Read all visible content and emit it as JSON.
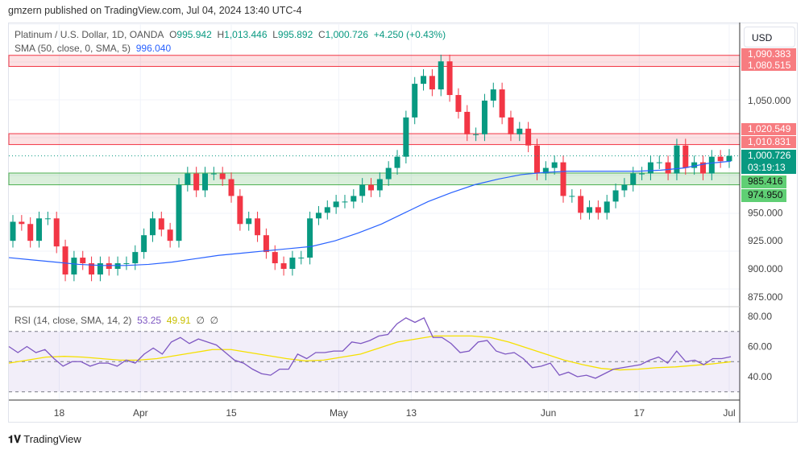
{
  "publisher": "gmzern published on TradingView.com, Jul 04, 2024 13:40 UTC-4",
  "legend": {
    "symbol": "Platinum / U.S. Dollar, 1D, OANDA",
    "o_label": "O",
    "o": "995.942",
    "h_label": "H",
    "h": "1,013.446",
    "l_label": "L",
    "l": "995.892",
    "c_label": "C",
    "c": "1,000.726",
    "change": "+4.250 (+0.43%)",
    "sma_label": "SMA (50, close, 0, SMA, 5)",
    "sma_value": "996.040",
    "rsi_label": "RSI (14, close, SMA, 14, 2)",
    "rsi_value": "53.25",
    "rsi_sma": "49.91",
    "rsi_extra1": "∅",
    "rsi_extra2": "∅"
  },
  "currency": "USD",
  "tags": {
    "z1top": "1,090.383",
    "z1bot": "1,080.515",
    "z2top": "1,020.549",
    "z2bot": "1,010.831",
    "last": "1,000.726",
    "countdown": "03:19:13",
    "z3top": "985.416",
    "z3bot": "974.950"
  },
  "brand": "TradingView",
  "colors": {
    "up": "#089981",
    "down": "#f23645",
    "sma": "#2962ff",
    "rsi": "#7e57c2",
    "rsi_sma": "#f5e000"
  },
  "chart_data": [
    {
      "type": "candlestick",
      "title": "Platinum / U.S. Dollar, 1D, OANDA",
      "ylim": [
        860,
        1110
      ],
      "yticks": [
        {
          "v": 1050,
          "label": "1,050.000"
        },
        {
          "v": 950,
          "label": "950.000"
        },
        {
          "v": 925,
          "label": "925.000"
        },
        {
          "v": 900,
          "label": "900.000"
        },
        {
          "v": 875,
          "label": "875.000"
        }
      ],
      "open0": 925,
      "closes": [
        942,
        940,
        925,
        945,
        945,
        920,
        895,
        910,
        905,
        895,
        905,
        900,
        905,
        905,
        915,
        930,
        945,
        935,
        925,
        975,
        985,
        970,
        985,
        985,
        980,
        965,
        940,
        945,
        930,
        915,
        905,
        900,
        910,
        910,
        945,
        950,
        955,
        960,
        960,
        965,
        975,
        970,
        980,
        990,
        1000,
        1035,
        1065,
        1072,
        1060,
        1085,
        1055,
        1040,
        1020,
        1020,
        1050,
        1060,
        1035,
        1020,
        1025,
        1010,
        985,
        990,
        995,
        965,
        965,
        950,
        955,
        950,
        960,
        970,
        975,
        985,
        985,
        995,
        995,
        985,
        1010,
        990,
        995,
        985,
        1000,
        996,
        1000.726
      ],
      "sma": [
        910,
        908,
        906,
        904,
        903,
        903,
        904,
        906,
        909,
        912,
        914,
        916,
        918,
        920,
        925,
        932,
        940,
        950,
        960,
        968,
        975,
        980,
        984,
        986,
        987,
        987,
        987,
        987,
        988,
        990,
        994,
        996
      ],
      "zones": [
        {
          "from": 1080.515,
          "to": 1090.383,
          "kind": "resistance"
        },
        {
          "from": 1010.831,
          "to": 1020.549,
          "kind": "resistance"
        },
        {
          "from": 974.95,
          "to": 985.416,
          "kind": "support"
        }
      ],
      "last": 1000.726,
      "xticks": [
        {
          "bar": 5.3,
          "label": "18"
        },
        {
          "bar": 14.6,
          "label": "Apr"
        },
        {
          "bar": 25,
          "label": "15"
        },
        {
          "bar": 37.3,
          "label": "May"
        },
        {
          "bar": 45.6,
          "label": "13"
        },
        {
          "bar": 61.3,
          "label": "Jun"
        },
        {
          "bar": 71.7,
          "label": "17"
        },
        {
          "bar": 82,
          "label": "Jul"
        }
      ]
    },
    {
      "type": "line",
      "title": "RSI (14, close, SMA, 14, 2)",
      "ylim": [
        25,
        85
      ],
      "levels": [
        70,
        50,
        30
      ],
      "yticks": [
        {
          "v": 80,
          "label": "80.00"
        },
        {
          "v": 60,
          "label": "60.00"
        },
        {
          "v": 40,
          "label": "40.00"
        }
      ],
      "rsi": [
        60,
        56,
        60,
        56,
        58,
        52,
        47,
        50,
        50,
        47,
        49,
        49,
        47,
        51,
        49,
        55,
        59,
        55,
        63,
        66,
        62,
        65,
        63,
        61,
        56,
        51,
        49,
        45,
        42,
        41,
        45,
        45,
        55,
        52,
        56,
        56,
        57,
        57,
        63,
        62,
        64,
        67,
        68,
        75,
        79,
        76,
        79,
        66,
        66,
        62,
        56,
        57,
        63,
        64,
        57,
        55,
        56,
        52,
        46,
        47,
        49,
        41,
        43,
        40,
        41,
        39,
        42,
        45,
        46,
        47,
        48,
        51,
        53,
        49,
        57,
        50,
        51,
        48,
        52,
        52,
        53.25
      ],
      "rsi_sma": [
        49,
        51,
        53,
        53.5,
        53,
        52,
        51,
        51,
        52,
        54,
        56,
        58,
        58,
        56,
        54,
        52,
        50.5,
        51,
        53,
        55,
        59,
        63,
        65,
        67,
        67,
        67,
        66,
        63,
        59,
        55,
        51,
        48,
        45.5,
        44.5,
        45,
        46,
        46.5,
        47.5,
        48.5,
        49.91
      ]
    }
  ]
}
